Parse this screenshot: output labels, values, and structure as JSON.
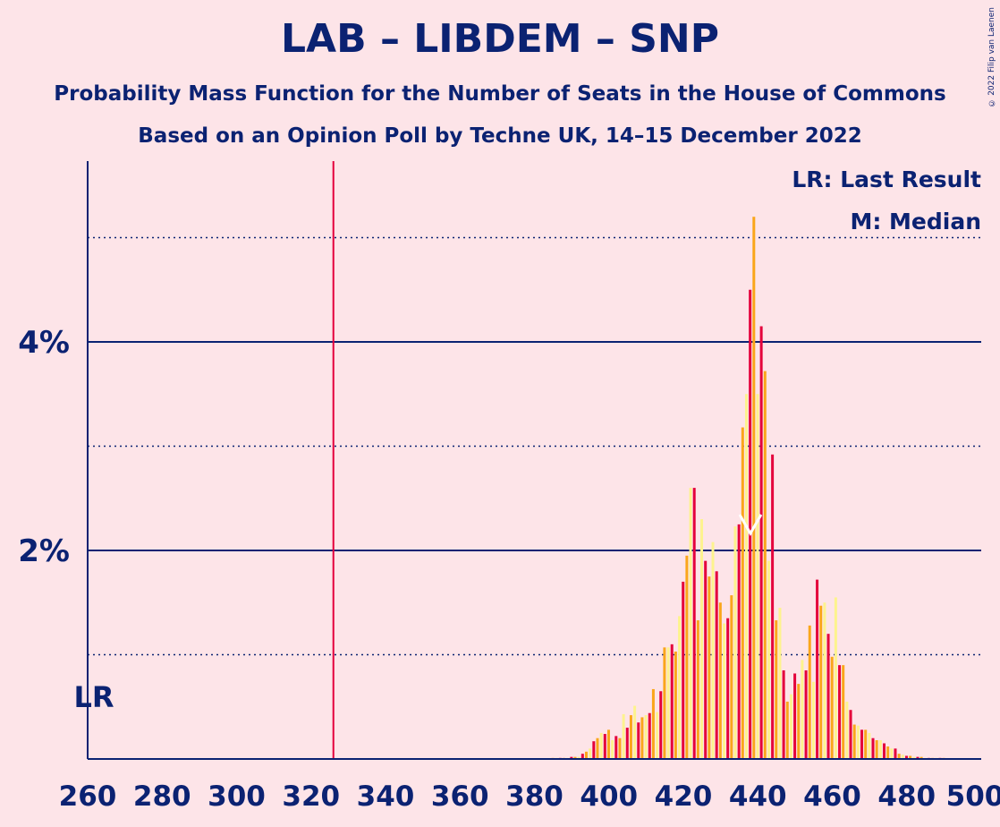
{
  "title": "LAB – LIBDEM – SNP",
  "subtitle1": "Probability Mass Function for the Number of Seats in the House of Commons",
  "subtitle2": "Based on an Opinion Poll by Techne UK, 14–15 December 2022",
  "copyright": "© 2022 Filip van Laenen",
  "colors": {
    "background": "#FDE4E8",
    "text": "#0B2272",
    "lab_red": "#E4003B",
    "libdem_orange": "#FAA61A",
    "snp_yellow": "#FDF38E"
  },
  "chart_data": {
    "type": "bar",
    "xlim": [
      260,
      500
    ],
    "ylim": [
      0,
      5.7
    ],
    "x_ticks": [
      "260",
      "280",
      "300",
      "320",
      "340",
      "360",
      "380",
      "400",
      "420",
      "440",
      "460",
      "480",
      "500"
    ],
    "y_ticks": [
      {
        "value": 2,
        "label": "2%"
      },
      {
        "value": 4,
        "label": "4%"
      }
    ],
    "y_minor_grid": [
      1,
      3,
      5
    ],
    "last_result": {
      "seat": 326,
      "label": "LR"
    },
    "median": {
      "seat": 438,
      "label": "M"
    },
    "legend": [
      "LR: Last Result",
      "M: Median"
    ],
    "legend_position": "top-right",
    "seats": [
      385,
      386,
      387,
      388,
      389,
      390,
      391,
      392,
      393,
      394,
      395,
      396,
      397,
      398,
      399,
      400,
      401,
      402,
      403,
      404,
      405,
      406,
      407,
      408,
      409,
      410,
      411,
      412,
      413,
      414,
      415,
      416,
      417,
      418,
      419,
      420,
      421,
      422,
      423,
      424,
      425,
      426,
      427,
      428,
      429,
      430,
      431,
      432,
      433,
      434,
      435,
      436,
      437,
      438,
      439,
      440,
      441,
      442,
      443,
      444,
      445,
      446,
      447,
      448,
      449,
      450,
      451,
      452,
      453,
      454,
      455,
      456,
      457,
      458,
      459,
      460,
      461,
      462,
      463,
      464,
      465,
      466,
      467,
      468,
      469,
      470,
      471,
      472,
      473,
      474,
      475,
      476,
      477,
      478,
      479,
      480,
      481,
      482,
      483,
      484,
      485,
      486,
      487,
      488,
      489,
      490
    ],
    "values": [
      0.01,
      0.01,
      0.01,
      0.01,
      0.01,
      0.02,
      0.02,
      0.02,
      0.05,
      0.07,
      0.1,
      0.17,
      0.2,
      0.25,
      0.24,
      0.28,
      0.18,
      0.22,
      0.2,
      0.43,
      0.3,
      0.42,
      0.51,
      0.35,
      0.4,
      0.42,
      0.44,
      0.67,
      0.45,
      0.65,
      1.07,
      1.07,
      1.1,
      1.03,
      1.37,
      1.7,
      1.95,
      2.6,
      2.6,
      1.33,
      2.3,
      1.9,
      1.75,
      2.08,
      1.8,
      1.5,
      1.3,
      1.35,
      1.57,
      2.23,
      2.25,
      3.18,
      3.5,
      4.5,
      5.2,
      3.5,
      4.15,
      3.72,
      1.9,
      2.92,
      1.33,
      1.45,
      0.85,
      0.55,
      0.62,
      0.82,
      0.72,
      0.95,
      0.85,
      1.28,
      0.74,
      1.72,
      1.47,
      1.5,
      1.2,
      0.98,
      1.55,
      0.9,
      0.9,
      0.55,
      0.47,
      0.33,
      0.32,
      0.28,
      0.28,
      0.25,
      0.2,
      0.18,
      0.18,
      0.15,
      0.12,
      0.1,
      0.1,
      0.05,
      0.04,
      0.03,
      0.03,
      0.02,
      0.02,
      0.02,
      0.01,
      0.01,
      0.01,
      0.01,
      0.01,
      0.01
    ]
  }
}
